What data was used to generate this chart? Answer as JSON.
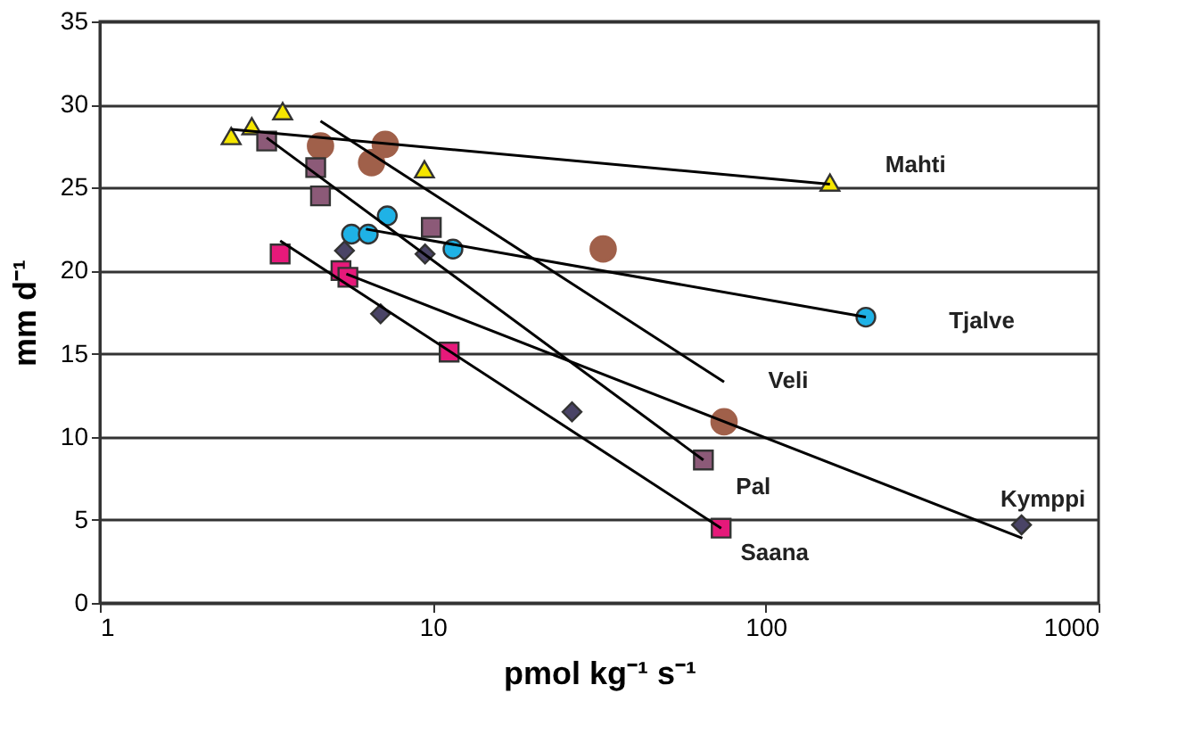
{
  "chart_data": {
    "type": "scatter",
    "xlabel": "pmol kg⁻¹ s⁻¹",
    "ylabel": "mm d⁻¹",
    "log": "x",
    "xlim": [
      1,
      1000
    ],
    "xticks": [
      1,
      10,
      100,
      1000
    ],
    "ylim": [
      0,
      35
    ],
    "yticks": [
      0,
      5,
      10,
      15,
      20,
      25,
      30,
      35
    ],
    "grid": "y",
    "series": [
      {
        "name": "Mahti",
        "type": "scatter",
        "marker": "triangle",
        "color": "#f5e600",
        "x": [
          2.48,
          2.86,
          3.54,
          9.44,
          156
        ],
        "values": [
          28.1,
          28.7,
          29.6,
          26.1,
          25.3
        ]
      },
      {
        "name": "Tjalve",
        "type": "scatter",
        "marker": "circle",
        "color": "#1fb2e6",
        "x": [
          5.7,
          6.4,
          7.3,
          11.5,
          200
        ],
        "values": [
          22.2,
          22.2,
          23.3,
          21.3,
          17.2
        ]
      },
      {
        "name": "Veli",
        "type": "scatter",
        "marker": "circle",
        "color": "#a0604a",
        "x": [
          4.6,
          6.55,
          7.2,
          32.5,
          75
        ],
        "values": [
          27.5,
          26.5,
          27.6,
          21.3,
          10.9
        ]
      },
      {
        "name": "Pal",
        "type": "scatter",
        "marker": "square",
        "color": "#8c5a78",
        "x": [
          3.17,
          4.45,
          4.6,
          9.9,
          65
        ],
        "values": [
          27.8,
          26.2,
          24.5,
          22.6,
          8.6
        ]
      },
      {
        "name": "Kymppi",
        "type": "scatter",
        "marker": "diamond",
        "color": "#4a4466",
        "x": [
          5.43,
          6.97,
          9.48,
          26.2,
          587
        ],
        "values": [
          21.2,
          17.4,
          21.0,
          11.5,
          4.7
        ]
      },
      {
        "name": "Saana",
        "type": "scatter",
        "marker": "square",
        "color": "#e6197a",
        "x": [
          3.48,
          5.3,
          5.56,
          11.2,
          73.5
        ],
        "values": [
          21.0,
          20.0,
          19.6,
          15.1,
          4.5
        ]
      },
      {
        "type": "line",
        "color": "#000000",
        "x": [
          2.48,
          156
        ],
        "values": [
          28.5,
          25.2
        ]
      },
      {
        "type": "line",
        "color": "#000000",
        "x": [
          6.3,
          200
        ],
        "values": [
          22.5,
          17.2
        ]
      },
      {
        "type": "line",
        "color": "#000000",
        "x": [
          4.6,
          75
        ],
        "values": [
          29.0,
          13.3
        ]
      },
      {
        "type": "line",
        "color": "#000000",
        "x": [
          3.17,
          65
        ],
        "values": [
          28.0,
          8.6
        ]
      },
      {
        "type": "line",
        "color": "#000000",
        "x": [
          5.5,
          590
        ],
        "values": [
          19.8,
          3.9
        ]
      },
      {
        "type": "line",
        "color": "#000000",
        "x": [
          3.48,
          73.5
        ],
        "values": [
          21.8,
          4.5
        ]
      }
    ]
  }
}
